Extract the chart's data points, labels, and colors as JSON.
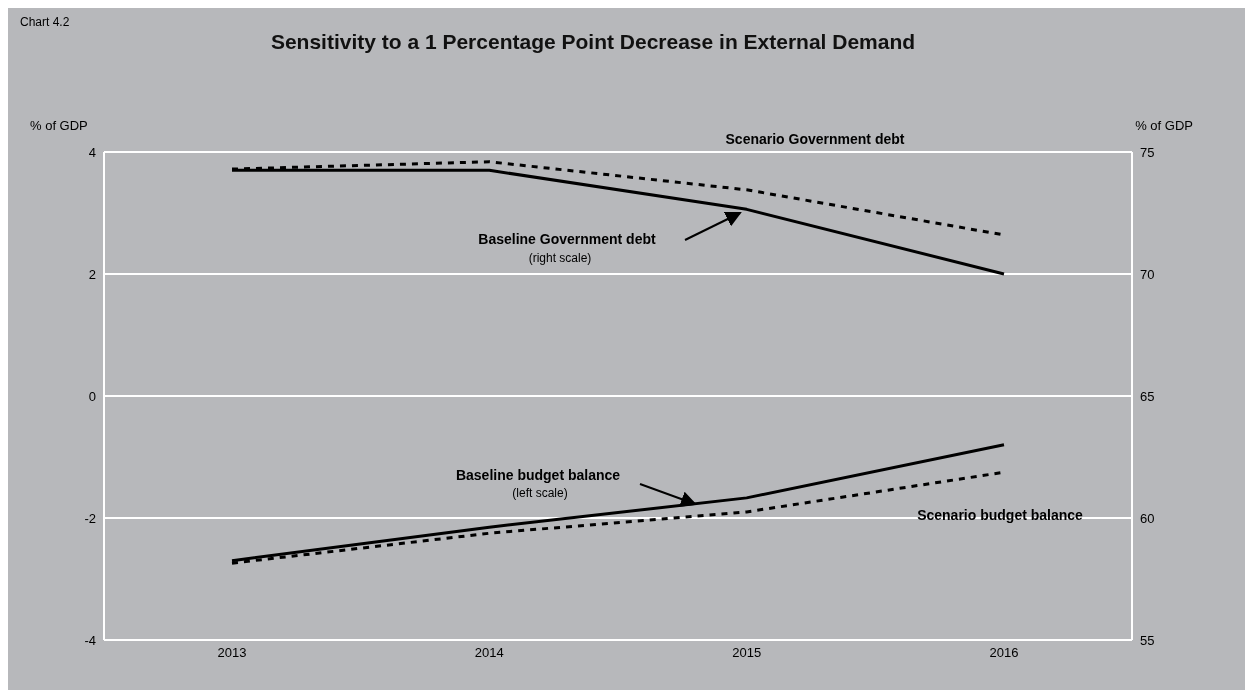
{
  "chart_data": {
    "type": "line",
    "title": "Sensitivity to a 1 Percentage Point Decrease in External Demand",
    "ylabel": "% of GDP",
    "y2label": "% of GDP",
    "annotations": [
      "Chart 4.2",
      "(right scale)",
      "(left scale)"
    ],
    "categories": [
      "2013",
      "2014",
      "2015",
      "2016"
    ],
    "series": [
      {
        "name": "Scenario Government debt",
        "color": "#000000",
        "axis": "y2",
        "line_style": "dashed",
        "values": [
          74.3,
          74.6,
          73.45,
          71.6
        ]
      },
      {
        "name": "Baseline Government debt",
        "color": "#000000",
        "axis": "y2",
        "line_style": "solid",
        "values": [
          74.25,
          74.25,
          72.65,
          70.0
        ]
      },
      {
        "name": "Baseline budget balance",
        "color": "#000000",
        "line_style": "solid",
        "values": [
          -2.7,
          -2.15,
          -1.67,
          -0.8
        ]
      },
      {
        "name": "Scenario budget balance",
        "color": "#000000",
        "line_style": "dashed",
        "values": [
          -2.74,
          -2.25,
          -1.9,
          -1.25
        ]
      }
    ],
    "ylim": [
      -4,
      4
    ],
    "yticks": [
      -4,
      -2,
      0,
      2,
      4
    ],
    "y2lim": [
      55,
      75
    ],
    "y2ticks": [
      55,
      60,
      65,
      70,
      75
    ],
    "grid": "y",
    "legend": false,
    "marker": "none"
  }
}
